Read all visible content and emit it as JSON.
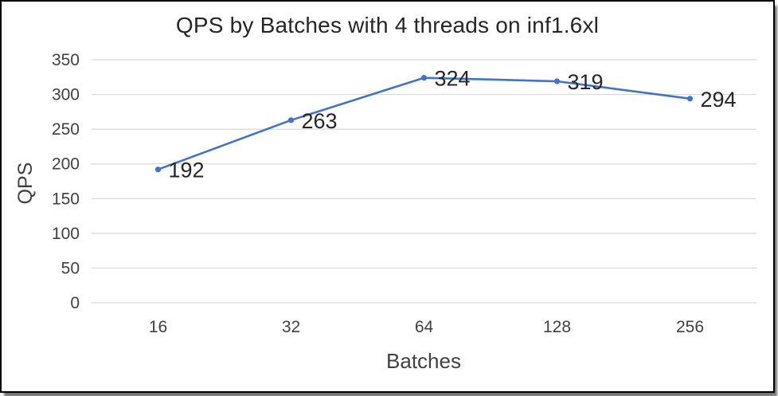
{
  "chart_data": {
    "type": "line",
    "title": "QPS by Batches with 4 threads on inf1.6xl",
    "xlabel": "Batches",
    "ylabel": "QPS",
    "categories": [
      "16",
      "32",
      "64",
      "128",
      "256"
    ],
    "series": [
      {
        "name": "QPS",
        "values": [
          192,
          263,
          324,
          319,
          294
        ]
      }
    ],
    "data_labels": [
      "192",
      "263",
      "324",
      "319",
      "294"
    ],
    "ylim": [
      0,
      350
    ],
    "ytick_step": 50,
    "yticks": [
      "0",
      "50",
      "100",
      "150",
      "200",
      "250",
      "300",
      "350"
    ],
    "grid": "horizontal",
    "legend": "none",
    "marker": "dot",
    "colors": {
      "line": "#4472C4",
      "grid": "#D9D9D9",
      "tick_text": "#404040",
      "axis_title_text": "#404040",
      "data_label_text": "#262626",
      "title_text": "#262626",
      "background": "#FFFFFF",
      "frame_border": "#000000"
    }
  }
}
